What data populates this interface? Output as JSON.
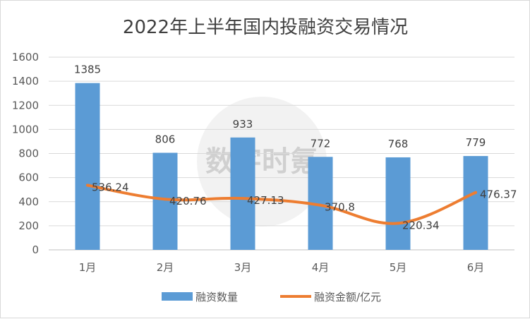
{
  "chart_data": {
    "type": "bar",
    "title": "2022年上半年国内投融资交易情况",
    "categories": [
      "1月",
      "2月",
      "3月",
      "4月",
      "5月",
      "6月"
    ],
    "ylim": [
      0,
      1600
    ],
    "yticks": [
      "0",
      "200",
      "400",
      "600",
      "800",
      "1000",
      "1200",
      "1400",
      "1600"
    ],
    "grid": true,
    "legend_position": "bottom",
    "series": [
      {
        "name": "融资数量",
        "type": "bar",
        "color": "#5b9bd5",
        "values": [
          1385,
          806,
          933,
          772,
          768,
          779
        ],
        "labels": [
          "1385",
          "806",
          "933",
          "772",
          "768",
          "779"
        ]
      },
      {
        "name": "融资金额/亿元",
        "type": "line",
        "color": "#ed7d31",
        "values": [
          536.24,
          420.76,
          427.13,
          370.8,
          220.34,
          476.37
        ],
        "labels": [
          "536.24",
          "420.76",
          "427.13",
          "370.8",
          "220.34",
          "476.37"
        ]
      }
    ],
    "watermark": "数字时氪"
  }
}
